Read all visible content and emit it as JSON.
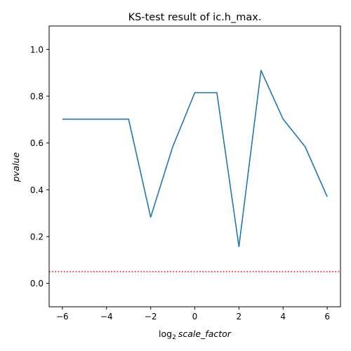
{
  "chart_data": {
    "type": "line",
    "title": "KS-test result of ic.h_max.",
    "xlabel": {
      "prefix": "log",
      "subscript": "2",
      "variable": "scale_factor"
    },
    "ylabel": "pvalue",
    "xlim": [
      -6.6,
      6.6
    ],
    "ylim": [
      -0.1,
      1.1
    ],
    "xticks": [
      {
        "value": -6,
        "label": "−6"
      },
      {
        "value": -4,
        "label": "−4"
      },
      {
        "value": -2,
        "label": "−2"
      },
      {
        "value": 0,
        "label": "0"
      },
      {
        "value": 2,
        "label": "2"
      },
      {
        "value": 4,
        "label": "4"
      },
      {
        "value": 6,
        "label": "6"
      }
    ],
    "yticks": [
      {
        "value": 0.0,
        "label": "0.0"
      },
      {
        "value": 0.2,
        "label": "0.2"
      },
      {
        "value": 0.4,
        "label": "0.4"
      },
      {
        "value": 0.6,
        "label": "0.6"
      },
      {
        "value": 0.8,
        "label": "0.8"
      },
      {
        "value": 1.0,
        "label": "1.0"
      }
    ],
    "grid": false,
    "series": [
      {
        "color": "#1f77b4",
        "x": [
          -6,
          -5,
          -4,
          -3,
          -2,
          -1,
          0,
          1,
          2,
          3,
          4,
          5,
          6
        ],
        "y": [
          0.702,
          0.702,
          0.702,
          0.702,
          0.283,
          0.584,
          0.815,
          0.815,
          0.157,
          0.91,
          0.702,
          0.584,
          0.37
        ]
      }
    ],
    "reference_lines": [
      {
        "orientation": "horizontal",
        "y": 0.05,
        "color": "#ff0000",
        "style": "dotted"
      }
    ]
  }
}
